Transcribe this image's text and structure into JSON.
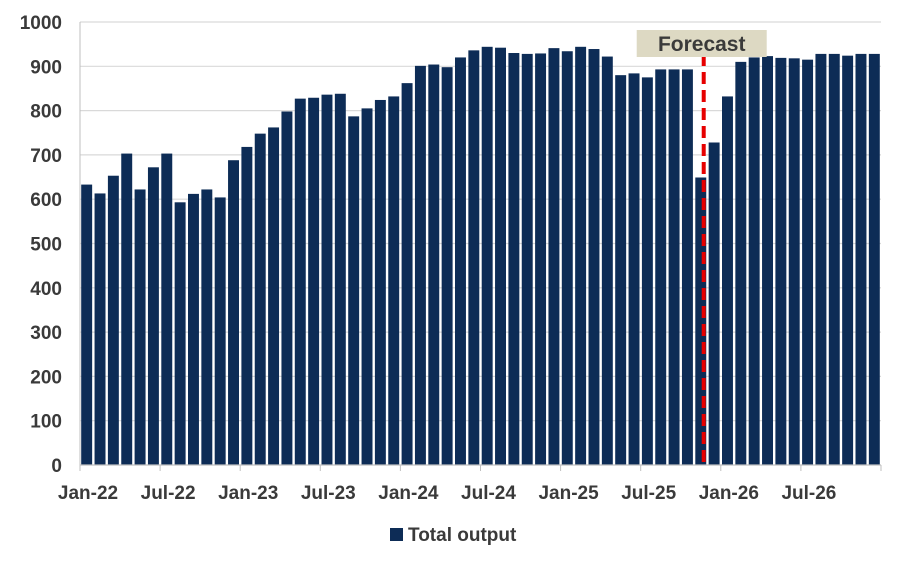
{
  "chart_data": {
    "type": "bar",
    "title": "",
    "xlabel": "",
    "ylabel": "",
    "ylim": [
      0,
      1000
    ],
    "yticks": [
      0,
      100,
      200,
      300,
      400,
      500,
      600,
      700,
      800,
      900,
      1000
    ],
    "grid": true,
    "categories": [
      "Jan-22",
      "Feb-22",
      "Mar-22",
      "Apr-22",
      "May-22",
      "Jun-22",
      "Jul-22",
      "Aug-22",
      "Sep-22",
      "Oct-22",
      "Nov-22",
      "Dec-22",
      "Jan-23",
      "Feb-23",
      "Mar-23",
      "Apr-23",
      "May-23",
      "Jun-23",
      "Jul-23",
      "Aug-23",
      "Sep-23",
      "Oct-23",
      "Nov-23",
      "Dec-23",
      "Jan-24",
      "Feb-24",
      "Mar-24",
      "Apr-24",
      "May-24",
      "Jun-24",
      "Jul-24",
      "Aug-24",
      "Sep-24",
      "Oct-24",
      "Nov-24",
      "Dec-24",
      "Jan-25",
      "Feb-25",
      "Mar-25",
      "Apr-25",
      "May-25",
      "Jun-25",
      "Jul-25",
      "Aug-25",
      "Sep-25",
      "Oct-25",
      "Nov-25",
      "Dec-25",
      "Jan-26",
      "Feb-26",
      "Mar-26",
      "Apr-26",
      "May-26",
      "Jun-26",
      "Jul-26",
      "Aug-26",
      "Sep-26",
      "Oct-26",
      "Nov-26",
      "Dec-26"
    ],
    "x_tick_labels": [
      "Jan-22",
      "Jul-22",
      "Jan-23",
      "Jul-23",
      "Jan-24",
      "Jul-24",
      "Jan-25",
      "Jul-25",
      "Jan-26",
      "Jul-26"
    ],
    "series": [
      {
        "name": "Total output",
        "color": "#0d2c56",
        "values": [
          633,
          613,
          653,
          703,
          622,
          672,
          703,
          593,
          612,
          622,
          604,
          688,
          718,
          748,
          762,
          798,
          827,
          829,
          836,
          838,
          787,
          805,
          824,
          832,
          862,
          901,
          904,
          898,
          920,
          936,
          944,
          942,
          930,
          928,
          929,
          941,
          934,
          944,
          939,
          922,
          880,
          884,
          875,
          893,
          893,
          893,
          649,
          728,
          832,
          910,
          920,
          923,
          919,
          918,
          915,
          928,
          928,
          924,
          928,
          928
        ]
      }
    ],
    "annotations": [
      {
        "text": "Forecast",
        "at_category": "Nov-25",
        "line_color": "#e60000",
        "box_color": "#ddd9c3"
      }
    ],
    "legend": {
      "position": "bottom-center",
      "entries": [
        "Total output"
      ]
    }
  }
}
